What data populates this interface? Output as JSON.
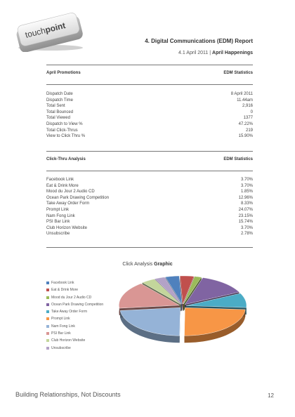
{
  "logo": {
    "text_light": "touch",
    "text_bold": "point"
  },
  "header": {
    "title": "4. Digital Communications (EDM) Report",
    "date": "4.1 April 2011",
    "separator": "|",
    "campaign": "April Happenings"
  },
  "promotions": {
    "left_header": "April Promotions",
    "right_header": "EDM Statistics",
    "rows": [
      {
        "label": "Dispatch Date",
        "value": "8 April 2011"
      },
      {
        "label": "Dispatch Time",
        "value": "11.44am"
      },
      {
        "label": "Total Sent",
        "value": "2,916"
      },
      {
        "label": "Total Bounced",
        "value": "0"
      },
      {
        "label": "Total Viewed",
        "value": "1377"
      },
      {
        "label": "Dispatch to View %",
        "value": "47.22%"
      },
      {
        "label": "Total Click-Thrus",
        "value": "219"
      },
      {
        "label": "View to Click Thru %",
        "value": "15.90%"
      }
    ]
  },
  "clickthru": {
    "left_header": "Click-Thru Analysis",
    "right_header": "EDM Statistics",
    "rows": [
      {
        "label": "Facebook Link",
        "value": "3.70%"
      },
      {
        "label": "Eat & Drink More",
        "value": "3.70%"
      },
      {
        "label": "Mood du Jour 2 Audio CD",
        "value": "1.85%"
      },
      {
        "label": "Ocean Park Drawing Competition",
        "value": "12.96%"
      },
      {
        "label": "Take Away Order Form",
        "value": "8.33%"
      },
      {
        "label": "Prompt Link",
        "value": "24.07%"
      },
      {
        "label": "Nam Fong Link",
        "value": "23.15%"
      },
      {
        "label": "PSI Bar Link",
        "value": "15.74%"
      },
      {
        "label": "Club Horizon Website",
        "value": "3.70%"
      },
      {
        "label": "Unsubscribe",
        "value": "2.78%"
      }
    ]
  },
  "chart_heading": {
    "prefix": "Click Analysis",
    "bold": "Graphic"
  },
  "chart_data": {
    "type": "pie",
    "title": "Click Analysis Graphic",
    "legend_position": "left",
    "categories": [
      "Facebook Link",
      "Eat & Drink More",
      "Mood du Jour 2 Audio CD",
      "Ocean Park Drawing Competition",
      "Take Away Order Form",
      "Prompt Link",
      "Nam Fong Link",
      "PSI Bar Link",
      "Club Horizon Website",
      "Unsubscribe"
    ],
    "values": [
      3.7,
      3.7,
      1.85,
      12.96,
      8.33,
      24.07,
      23.15,
      15.74,
      3.7,
      2.78
    ],
    "colors": [
      "#4f81bd",
      "#c0504d",
      "#9bbb59",
      "#8064a2",
      "#4bacc6",
      "#f79646",
      "#95b3d7",
      "#d99694",
      "#c3d69b",
      "#b3a2c7"
    ]
  },
  "footer": {
    "tagline": "Building Relationships, Not Discounts",
    "page": "12"
  }
}
